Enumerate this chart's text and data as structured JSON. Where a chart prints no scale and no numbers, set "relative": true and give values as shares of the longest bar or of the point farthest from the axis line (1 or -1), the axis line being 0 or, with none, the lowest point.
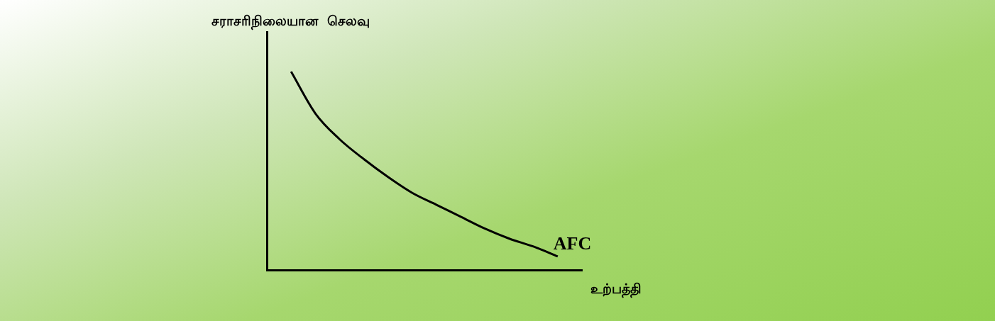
{
  "chart_data": {
    "type": "line",
    "relative": true,
    "ylabel": "சராசரிநிலையான  செலவு",
    "xlabel": "உற்பத்தி",
    "categories": [
      null,
      null,
      null,
      null,
      null,
      null,
      null,
      null,
      null,
      null,
      null,
      null,
      null,
      null
    ],
    "series": [
      {
        "name": "AFC",
        "color": "#000000",
        "values": [
          null,
          1,
          0.79,
          0.66,
          0.56,
          0.47,
          0.39,
          0.33,
          0.27,
          0.21,
          0.16,
          0.12,
          0.07,
          null
        ]
      }
    ],
    "legend": false,
    "grid": false,
    "marker": "none",
    "line_style": "solid"
  }
}
